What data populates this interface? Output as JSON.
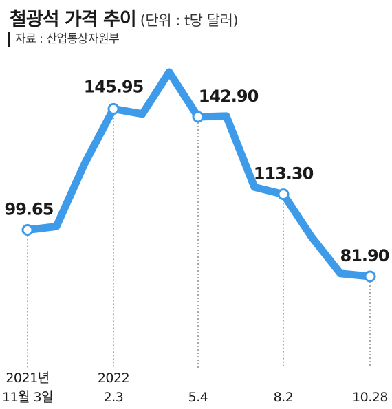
{
  "header": {
    "title": "철광석 가격 추이",
    "unit": "(단위 : t당 달러)",
    "source": "자료 : 산업통상자원부"
  },
  "colors": {
    "line": "#3d9be9",
    "marker_fill": "#ffffff",
    "text": "#1a1a1a",
    "guide": "#555555"
  },
  "chart_data": {
    "type": "line",
    "title": "철광석 가격 추이",
    "ylabel": "(단위 : t당 달러)",
    "ylim": [
      50,
      165
    ],
    "grid": false,
    "series": [
      {
        "values": [
          99.65,
          101,
          125,
          145.95,
          144,
          160,
          142.9,
          143.2,
          116,
          113.3,
          97,
          83,
          81.9
        ]
      }
    ],
    "points": [
      {
        "index": 0,
        "value": "99.65",
        "date_lines": [
          "2021년",
          "11월 3일"
        ]
      },
      {
        "index": 3,
        "value": "145.95",
        "date_lines": [
          "2022",
          "2.3"
        ]
      },
      {
        "index": 6,
        "value": "142.90",
        "date_lines": [
          "",
          "5.4"
        ]
      },
      {
        "index": 9,
        "value": "113.30",
        "date_lines": [
          "",
          "8.2"
        ]
      },
      {
        "index": 12,
        "value": "81.90",
        "date_lines": [
          "",
          "10.28"
        ]
      }
    ]
  }
}
